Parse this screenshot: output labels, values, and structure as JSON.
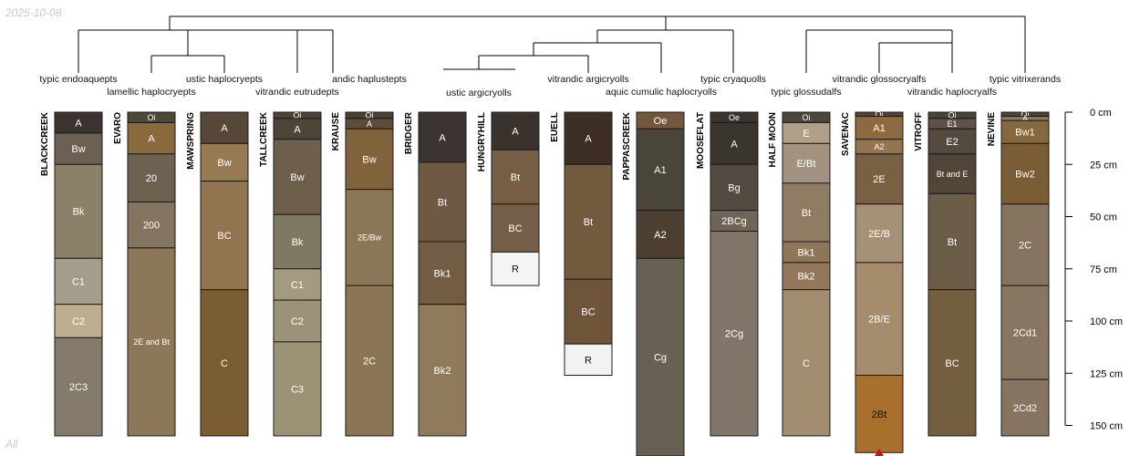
{
  "date_stamp": "2025-10-08",
  "corner_note": "All",
  "depth_axis": {
    "unit": "cm",
    "ticks": [
      {
        "depth": 0,
        "label": "0 cm"
      },
      {
        "depth": 25,
        "label": "25 cm"
      },
      {
        "depth": 50,
        "label": "50 cm"
      },
      {
        "depth": 75,
        "label": "75 cm"
      },
      {
        "depth": 100,
        "label": "100 cm"
      },
      {
        "depth": 125,
        "label": "125 cm"
      },
      {
        "depth": 150,
        "label": "150 cm"
      }
    ]
  },
  "taxa": [
    "typic endoaquepts",
    "lamellic haplocryepts",
    "ustic haplocryepts",
    "vitrandic eutrudepts",
    "andic haplustepts",
    "ustic argicryolls",
    "vitrandic argicryolls",
    "aquic cumulic haplocryolls",
    "typic cryaquolls",
    "typic glossudalfs",
    "vitrandic glossocryalfs",
    "vitrandic haplocryalfs",
    "typic vitrixerands"
  ],
  "profiles": [
    {
      "name": "BLACKCREEK",
      "horizons": [
        {
          "name": "A",
          "top": 0,
          "bottom": 10,
          "color": "#3a3330"
        },
        {
          "name": "Bw",
          "top": 10,
          "bottom": 25,
          "color": "#6b6052"
        },
        {
          "name": "Bk",
          "top": 25,
          "bottom": 70,
          "color": "#8c8168"
        },
        {
          "name": "C1",
          "top": 70,
          "bottom": 92,
          "color": "#a59d8b"
        },
        {
          "name": "C2",
          "top": 92,
          "bottom": 108,
          "color": "#bcae8f"
        },
        {
          "name": "2C3",
          "top": 108,
          "bottom": 155,
          "color": "#857b6c"
        }
      ]
    },
    {
      "name": "EVARO",
      "horizons": [
        {
          "name": "Oi",
          "top": 0,
          "bottom": 5,
          "color": "#4f4538"
        },
        {
          "name": "A",
          "top": 5,
          "bottom": 20,
          "color": "#8a6a3c"
        },
        {
          "name": "20",
          "top": 20,
          "bottom": 43,
          "color": "#6e6150"
        },
        {
          "name": "200",
          "top": 43,
          "bottom": 65,
          "color": "#847462"
        },
        {
          "name": "2E and Bt",
          "top": 65,
          "bottom": 155,
          "color": "#8c7858"
        }
      ]
    },
    {
      "name": "MAWSPRING",
      "horizons": [
        {
          "name": "A",
          "top": 0,
          "bottom": 15,
          "color": "#574839"
        },
        {
          "name": "Bw",
          "top": 15,
          "bottom": 33,
          "color": "#957a54"
        },
        {
          "name": "BC",
          "top": 33,
          "bottom": 85,
          "color": "#917450"
        },
        {
          "name": "C",
          "top": 85,
          "bottom": 155,
          "color": "#7a5e33"
        }
      ]
    },
    {
      "name": "TALLCREEK",
      "horizons": [
        {
          "name": "Oi",
          "top": 0,
          "bottom": 3,
          "color": "#4c4339"
        },
        {
          "name": "A",
          "top": 3,
          "bottom": 13,
          "color": "#4e4539"
        },
        {
          "name": "Bw",
          "top": 13,
          "bottom": 49,
          "color": "#6e5f4c"
        },
        {
          "name": "Bk",
          "top": 49,
          "bottom": 75,
          "color": "#7f7862"
        },
        {
          "name": "C1",
          "top": 75,
          "bottom": 90,
          "color": "#a39a80"
        },
        {
          "name": "C2",
          "top": 90,
          "bottom": 110,
          "color": "#9b9278"
        },
        {
          "name": "C3",
          "top": 110,
          "bottom": 155,
          "color": "#9c9276"
        }
      ]
    },
    {
      "name": "KRAUSE",
      "horizons": [
        {
          "name": "Oi",
          "top": 0,
          "bottom": 3,
          "color": "#4b4036"
        },
        {
          "name": "A",
          "top": 3,
          "bottom": 8,
          "color": "#5e4c38"
        },
        {
          "name": "Bw",
          "top": 8,
          "bottom": 37,
          "color": "#80633c"
        },
        {
          "name": "2E/Bw",
          "top": 37,
          "bottom": 83,
          "color": "#8c7658"
        },
        {
          "name": "2C",
          "top": 83,
          "bottom": 155,
          "color": "#8b7555"
        }
      ]
    },
    {
      "name": "BRIDGER",
      "horizons": [
        {
          "name": "A",
          "top": 0,
          "bottom": 24,
          "color": "#3c3431"
        },
        {
          "name": "Bt",
          "top": 24,
          "bottom": 62,
          "color": "#6e5a42"
        },
        {
          "name": "Bk1",
          "top": 62,
          "bottom": 92,
          "color": "#725d44"
        },
        {
          "name": "Bk2",
          "top": 92,
          "bottom": 155,
          "color": "#8f7a5c"
        }
      ]
    },
    {
      "name": "HUNGRYHILL",
      "horizons": [
        {
          "name": "A",
          "top": 0,
          "bottom": 18,
          "color": "#3a322d"
        },
        {
          "name": "Bt",
          "top": 18,
          "bottom": 44,
          "color": "#765e45"
        },
        {
          "name": "BC",
          "top": 44,
          "bottom": 67,
          "color": "#745f48"
        },
        {
          "name": "R",
          "top": 67,
          "bottom": 83,
          "color": "#f4f4f4",
          "dark_text": true
        }
      ]
    },
    {
      "name": "EUELL",
      "horizons": [
        {
          "name": "A",
          "top": 0,
          "bottom": 25,
          "color": "#3d2f25"
        },
        {
          "name": "Bt",
          "top": 25,
          "bottom": 80,
          "color": "#715a3d"
        },
        {
          "name": "BC",
          "top": 80,
          "bottom": 111,
          "color": "#6e5539"
        },
        {
          "name": "R",
          "top": 111,
          "bottom": 126,
          "color": "#f2f2f2",
          "dark_text": true
        }
      ]
    },
    {
      "name": "PAPPASCREEK",
      "horizons": [
        {
          "name": "Oe",
          "top": 0,
          "bottom": 8,
          "color": "#73573d"
        },
        {
          "name": "A1",
          "top": 8,
          "bottom": 47,
          "color": "#4a4539"
        },
        {
          "name": "A2",
          "top": 47,
          "bottom": 70,
          "color": "#4d3f31"
        },
        {
          "name": "Cg",
          "top": 70,
          "bottom": 168,
          "color": "#666152"
        }
      ]
    },
    {
      "name": "MOOSEFLAT",
      "horizons": [
        {
          "name": "Oe",
          "top": 0,
          "bottom": 5,
          "color": "#3c352f"
        },
        {
          "name": "A",
          "top": 5,
          "bottom": 25,
          "color": "#3b3530"
        },
        {
          "name": "Bg",
          "top": 25,
          "bottom": 47,
          "color": "#534a41"
        },
        {
          "name": "2BCg",
          "top": 47,
          "bottom": 57,
          "color": "#6e6457"
        },
        {
          "name": "2Cg",
          "top": 57,
          "bottom": 155,
          "color": "#817669"
        }
      ]
    },
    {
      "name": "HALF MOON",
      "horizons": [
        {
          "name": "Oi",
          "top": 0,
          "bottom": 5,
          "color": "#4e463c"
        },
        {
          "name": "E",
          "top": 5,
          "bottom": 15,
          "color": "#b09f88"
        },
        {
          "name": "E/Bt",
          "top": 15,
          "bottom": 34,
          "color": "#a29381"
        },
        {
          "name": "Bt",
          "top": 34,
          "bottom": 62,
          "color": "#8f7c63"
        },
        {
          "name": "Bk1",
          "top": 62,
          "bottom": 72,
          "color": "#8f7658"
        },
        {
          "name": "Bk2",
          "top": 72,
          "bottom": 85,
          "color": "#94775a"
        },
        {
          "name": "C",
          "top": 85,
          "bottom": 155,
          "color": "#a38d70"
        }
      ]
    },
    {
      "name": "SAVENAC",
      "horizons": [
        {
          "name": "Oi",
          "top": 0,
          "bottom": 2,
          "color": "#4e463c"
        },
        {
          "name": "A1",
          "top": 2,
          "bottom": 13,
          "color": "#8d6a40"
        },
        {
          "name": "A2",
          "top": 13,
          "bottom": 20,
          "color": "#957450"
        },
        {
          "name": "2E",
          "top": 20,
          "bottom": 44,
          "color": "#7a6043"
        },
        {
          "name": "2E/B",
          "top": 44,
          "bottom": 72,
          "color": "#a49178"
        },
        {
          "name": "2B/E",
          "top": 72,
          "bottom": 126,
          "color": "#a48c6c"
        },
        {
          "name": "2Bt",
          "top": 126,
          "bottom": 163,
          "color": "#a8702c",
          "dark_text": true,
          "truncated": true
        }
      ]
    },
    {
      "name": "VITROFF",
      "horizons": [
        {
          "name": "Oi",
          "top": 0,
          "bottom": 3,
          "color": "#4a4339"
        },
        {
          "name": "E1",
          "top": 3,
          "bottom": 8,
          "color": "#5f5349"
        },
        {
          "name": "E2",
          "top": 8,
          "bottom": 20,
          "color": "#544a40"
        },
        {
          "name": "Bt and E",
          "top": 20,
          "bottom": 39,
          "color": "#514637"
        },
        {
          "name": "Bt",
          "top": 39,
          "bottom": 85,
          "color": "#6b5d48"
        },
        {
          "name": "BC",
          "top": 85,
          "bottom": 155,
          "color": "#735e40"
        }
      ]
    },
    {
      "name": "NEVINE",
      "horizons": [
        {
          "name": "Oi",
          "top": 0,
          "bottom": 2,
          "color": "#4d4438"
        },
        {
          "name": "A",
          "top": 2,
          "bottom": 4,
          "color": "#8a7a62"
        },
        {
          "name": "Bw1",
          "top": 4,
          "bottom": 15,
          "color": "#85693e"
        },
        {
          "name": "Bw2",
          "top": 15,
          "bottom": 44,
          "color": "#7a5c36"
        },
        {
          "name": "2C",
          "top": 44,
          "bottom": 83,
          "color": "#857560"
        },
        {
          "name": "2Cd1",
          "top": 83,
          "bottom": 128,
          "color": "#877662"
        },
        {
          "name": "2Cd2",
          "top": 128,
          "bottom": 155,
          "color": "#867561"
        }
      ]
    }
  ]
}
